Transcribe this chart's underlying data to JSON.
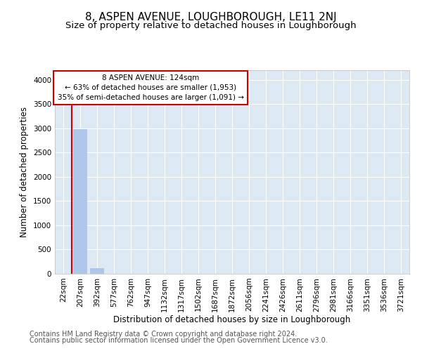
{
  "title": "8, ASPEN AVENUE, LOUGHBOROUGH, LE11 2NJ",
  "subtitle": "Size of property relative to detached houses in Loughborough",
  "xlabel": "Distribution of detached houses by size in Loughborough",
  "ylabel": "Number of detached properties",
  "categories": [
    "22sqm",
    "207sqm",
    "392sqm",
    "577sqm",
    "762sqm",
    "947sqm",
    "1132sqm",
    "1317sqm",
    "1502sqm",
    "1687sqm",
    "1872sqm",
    "2056sqm",
    "2241sqm",
    "2426sqm",
    "2611sqm",
    "2796sqm",
    "2981sqm",
    "3166sqm",
    "3351sqm",
    "3536sqm",
    "3721sqm"
  ],
  "bar_heights": [
    0,
    2980,
    110,
    0,
    0,
    0,
    0,
    0,
    0,
    0,
    0,
    0,
    0,
    0,
    0,
    0,
    0,
    0,
    0,
    0,
    0
  ],
  "bar_color": "#aec6e8",
  "property_line_color": "#cc0000",
  "annotation_text": "8 ASPEN AVENUE: 124sqm\n← 63% of detached houses are smaller (1,953)\n35% of semi-detached houses are larger (1,091) →",
  "annotation_box_color": "#ffffff",
  "annotation_box_edge": "#cc0000",
  "ylim": [
    0,
    4200
  ],
  "yticks": [
    0,
    500,
    1000,
    1500,
    2000,
    2500,
    3000,
    3500,
    4000
  ],
  "plot_bg_color": "#dce9f5",
  "grid_color": "#ffffff",
  "title_fontsize": 11,
  "subtitle_fontsize": 9.5,
  "xlabel_fontsize": 8.5,
  "ylabel_fontsize": 8.5,
  "tick_fontsize": 7.5,
  "annotation_fontsize": 7.5,
  "footer_line1": "Contains HM Land Registry data © Crown copyright and database right 2024.",
  "footer_line2": "Contains public sector information licensed under the Open Government Licence v3.0.",
  "footer_fontsize": 7
}
